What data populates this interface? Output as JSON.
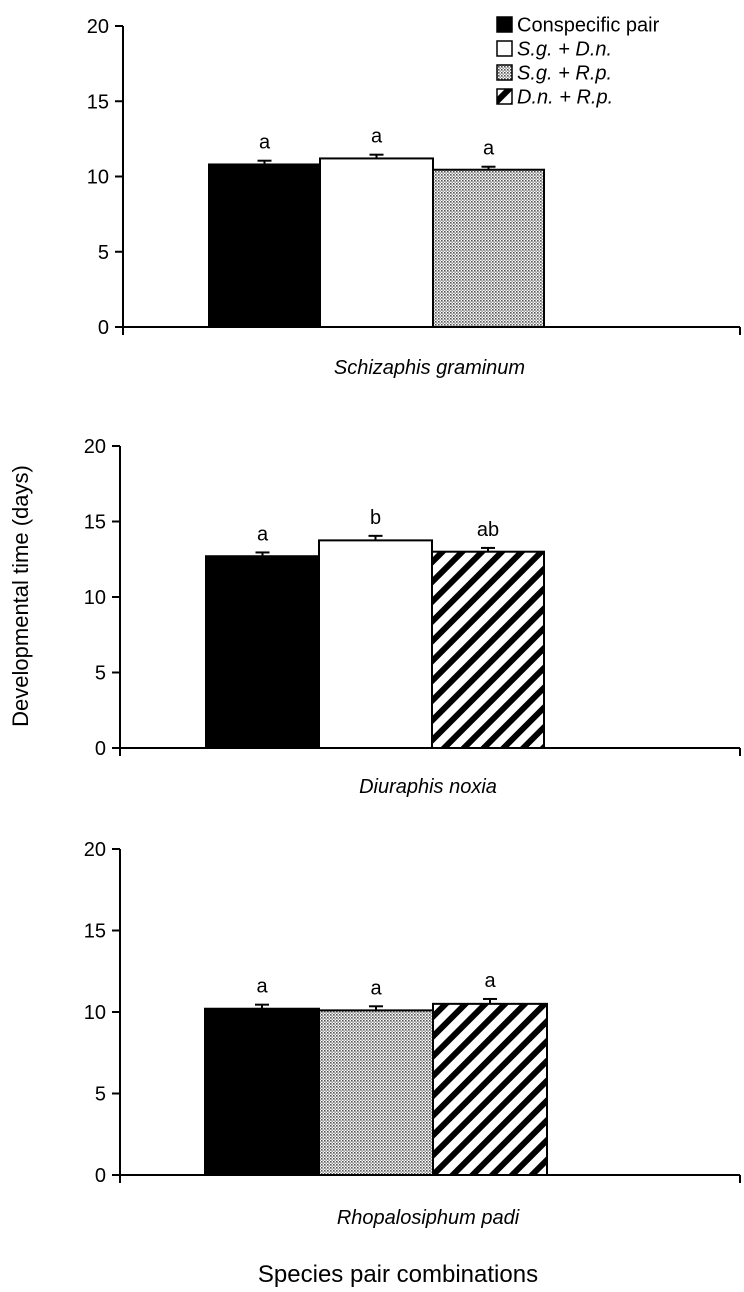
{
  "chart_data": {
    "type": "bar",
    "ylabel": "Developmental time (days)",
    "xlabel": "Species pair combinations",
    "ylim": [
      0,
      20
    ],
    "yticks": [
      0,
      5,
      10,
      15,
      20
    ],
    "grid": false,
    "legend": {
      "placement": "top-right",
      "entries": [
        {
          "key": "conspecific",
          "label": "Conspecific pair",
          "italic": false,
          "pattern": "solid-black"
        },
        {
          "key": "sg_dn",
          "label": "S.g. + D.n.",
          "italic": true,
          "pattern": "white"
        },
        {
          "key": "sg_rp",
          "label": "S.g. + R.p.",
          "italic": true,
          "pattern": "dotted"
        },
        {
          "key": "dn_rp",
          "label": "D.n. + R.p.",
          "italic": true,
          "pattern": "diagonal-stripes"
        }
      ]
    },
    "panels": [
      {
        "subtitle": "Schizaphis graminum",
        "bars": [
          {
            "series": "conspecific",
            "value": 10.8,
            "error": 0.25,
            "letter": "a"
          },
          {
            "series": "sg_dn",
            "value": 11.2,
            "error": 0.25,
            "letter": "a"
          },
          {
            "series": "sg_rp",
            "value": 10.45,
            "error": 0.2,
            "letter": "a"
          }
        ]
      },
      {
        "subtitle": "Diuraphis noxia",
        "bars": [
          {
            "series": "conspecific",
            "value": 12.7,
            "error": 0.25,
            "letter": "a"
          },
          {
            "series": "sg_dn",
            "value": 13.75,
            "error": 0.3,
            "letter": "b"
          },
          {
            "series": "dn_rp",
            "value": 13.0,
            "error": 0.25,
            "letter": "ab"
          }
        ]
      },
      {
        "subtitle": "Rhopalosiphum padi",
        "bars": [
          {
            "series": "conspecific",
            "value": 10.2,
            "error": 0.25,
            "letter": "a"
          },
          {
            "series": "sg_rp",
            "value": 10.1,
            "error": 0.25,
            "letter": "a"
          },
          {
            "series": "dn_rp",
            "value": 10.5,
            "error": 0.3,
            "letter": "a"
          }
        ]
      }
    ]
  }
}
